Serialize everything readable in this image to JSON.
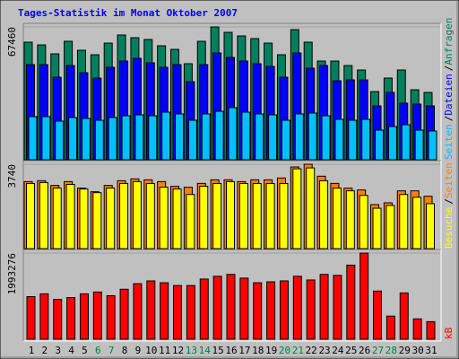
{
  "chart_data": [
    {
      "type": "bar",
      "title": "Tages-Statistik im Monat Oktober 2007",
      "title_color": "#0000ff",
      "ylim": [
        0,
        67460
      ],
      "yticks": [
        67460
      ],
      "legend_separator": "/",
      "series": [
        {
          "name": "Anfragen",
          "color": "#00805c",
          "values": [
            59710,
            58340,
            53780,
            60170,
            55610,
            53330,
            59250,
            63360,
            61990,
            61080,
            57890,
            56060,
            48770,
            60170,
            67460,
            64720,
            62900,
            61530,
            59250,
            53330,
            66090,
            59710,
            50140,
            50140,
            47860,
            45580,
            34640,
            41480,
            45580,
            35550,
            34190
          ]
        },
        {
          "name": "Dateien",
          "color": "#0000ff",
          "values": [
            48310,
            48310,
            41930,
            47860,
            44210,
            41480,
            46950,
            50140,
            51510,
            49230,
            46950,
            48310,
            39650,
            48310,
            54240,
            51960,
            50140,
            48770,
            47400,
            41930,
            54240,
            46490,
            47860,
            40110,
            40570,
            40570,
            27350,
            34190,
            28720,
            28260,
            27350
          ]
        },
        {
          "name": "Seiten",
          "color": "#00c0ff",
          "values": [
            21880,
            21880,
            19600,
            21420,
            20970,
            20060,
            21420,
            22330,
            22790,
            22330,
            24160,
            23250,
            20060,
            23250,
            24610,
            26440,
            24160,
            23250,
            22790,
            20060,
            23250,
            23700,
            22330,
            20510,
            20060,
            20510,
            15040,
            16860,
            17780,
            15040,
            14590
          ]
        }
      ]
    },
    {
      "type": "bar",
      "ylim": [
        0,
        3740
      ],
      "yticks": [
        3740
      ],
      "legend_separator": "/",
      "series": [
        {
          "name": "Seiten",
          "color": "#ff8000",
          "values": [
            2970,
            3010,
            2800,
            2970,
            2680,
            2520,
            2800,
            3010,
            3090,
            3050,
            2970,
            2760,
            2720,
            2890,
            3050,
            3050,
            2970,
            3050,
            3050,
            3130,
            3620,
            3740,
            3210,
            2890,
            2680,
            2600,
            1950,
            2030,
            2560,
            2560,
            2320
          ]
        },
        {
          "name": "Besuche",
          "color": "#ffff00",
          "values": [
            2886,
            2927,
            2683,
            2846,
            2642,
            2480,
            2683,
            2886,
            2967,
            2886,
            2724,
            2642,
            2398,
            2764,
            2886,
            2967,
            2886,
            2886,
            2886,
            2886,
            3537,
            3577,
            3008,
            2683,
            2561,
            2358,
            1789,
            1911,
            2398,
            2276,
            1992
          ]
        }
      ]
    },
    {
      "type": "bar",
      "ylim": [
        0,
        1993276
      ],
      "yticks": [
        1993276
      ],
      "categories": [
        "1",
        "2",
        "3",
        "4",
        "5",
        "6",
        "7",
        "8",
        "9",
        "10",
        "11",
        "12",
        "13",
        "14",
        "15",
        "16",
        "17",
        "18",
        "19",
        "20",
        "21",
        "22",
        "23",
        "24",
        "25",
        "26",
        "27",
        "28",
        "29",
        "30",
        "31"
      ],
      "category_colors": [
        "#000000",
        "#000000",
        "#000000",
        "#000000",
        "#000000",
        "#008040",
        "#008040",
        "#000000",
        "#000000",
        "#000000",
        "#000000",
        "#000000",
        "#008040",
        "#008040",
        "#000000",
        "#000000",
        "#000000",
        "#000000",
        "#000000",
        "#008040",
        "#008040",
        "#000000",
        "#000000",
        "#000000",
        "#000000",
        "#000000",
        "#008040",
        "#008040",
        "#000000",
        "#000000",
        "#000000"
      ],
      "series": [
        {
          "name": "kB",
          "color": "#ff0000",
          "values": [
            985900,
            1050200,
            921600,
            964500,
            1050200,
            1093100,
            1007400,
            1157400,
            1286000,
            1350300,
            1307400,
            1243100,
            1243100,
            1393100,
            1457400,
            1500300,
            1414600,
            1307400,
            1328800,
            1350300,
            1457400,
            1371700,
            1500300,
            1478900,
            1714600,
            1993276,
            1114500,
            535800,
            1071700,
            471500,
            407200
          ]
        }
      ]
    }
  ]
}
